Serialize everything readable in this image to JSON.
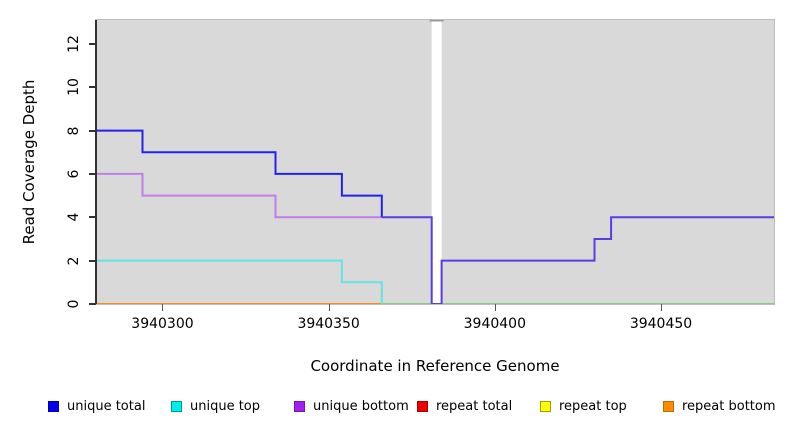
{
  "axes": {
    "x_title": "Coordinate in Reference Genome",
    "y_title": "Read Coverage Depth"
  },
  "chart_data": {
    "type": "line",
    "subtype": "step-coverage",
    "title": "",
    "xlabel": "Coordinate in Reference Genome",
    "ylabel": "Read Coverage Depth",
    "xlim": [
      3940280,
      3940484
    ],
    "ylim": [
      0,
      13.1
    ],
    "xticks": [
      3940300,
      3940350,
      3940400,
      3940450
    ],
    "yticks": [
      0,
      2,
      4,
      6,
      8,
      10,
      12
    ],
    "grid": "off",
    "plot_bg": "#d9d9d9",
    "border_color": "#bdbdbd",
    "gap_region": {
      "x_start": 3940381,
      "x_end": 3940384,
      "color": "#ffffff",
      "cap_color": "#999999"
    },
    "series": [
      {
        "name": "repeat-baseline-left",
        "color": "#ff8c00",
        "width": 2,
        "points": [
          [
            3940280,
            0
          ],
          [
            3940366,
            0
          ]
        ]
      },
      {
        "name": "baseline-right-green",
        "color": "#7cc87c",
        "width": 1.8,
        "points": [
          [
            3940366,
            0
          ],
          [
            3940484,
            0
          ]
        ]
      },
      {
        "name": "unique-top-left",
        "color": "#66e2e2",
        "width": 2,
        "points": [
          [
            3940280,
            2
          ],
          [
            3940354,
            2
          ],
          [
            3940354,
            1
          ],
          [
            3940366,
            1
          ],
          [
            3940366,
            0
          ]
        ]
      },
      {
        "name": "unique-bottom-left",
        "color": "#c07ee8",
        "width": 2,
        "points": [
          [
            3940280,
            6
          ],
          [
            3940294,
            6
          ],
          [
            3940294,
            5
          ],
          [
            3940334,
            5
          ],
          [
            3940334,
            4
          ],
          [
            3940366,
            4
          ]
        ]
      },
      {
        "name": "unique-total-left",
        "color": "#2222ee",
        "width": 2,
        "points": [
          [
            3940280,
            8
          ],
          [
            3940294,
            8
          ],
          [
            3940294,
            7
          ],
          [
            3940334,
            7
          ],
          [
            3940334,
            6
          ],
          [
            3940354,
            6
          ],
          [
            3940354,
            5
          ],
          [
            3940366,
            5
          ],
          [
            3940366,
            4
          ]
        ]
      },
      {
        "name": "unique-total-right-overlap",
        "color": "#5a3ce0",
        "width": 2,
        "points": [
          [
            3940366,
            4
          ],
          [
            3940381,
            4
          ],
          [
            3940381,
            0
          ],
          [
            3940384,
            0
          ],
          [
            3940384,
            2
          ],
          [
            3940430,
            2
          ],
          [
            3940430,
            3
          ],
          [
            3940435,
            3
          ],
          [
            3940435,
            4
          ],
          [
            3940484,
            4
          ]
        ]
      }
    ],
    "legend_position": "bottom"
  },
  "legend": {
    "items": [
      {
        "label": "unique total",
        "fill": "#0000ee",
        "border": "#0000b0"
      },
      {
        "label": "unique top",
        "fill": "#00eeee",
        "border": "#009999"
      },
      {
        "label": "unique bottom",
        "fill": "#a020f0",
        "border": "#7714b8"
      },
      {
        "label": "repeat total",
        "fill": "#ee0000",
        "border": "#aa0000"
      },
      {
        "label": "repeat top",
        "fill": "#ffff00",
        "border": "#a0a000"
      },
      {
        "label": "repeat bottom",
        "fill": "#ff8c00",
        "border": "#c06a00"
      }
    ]
  }
}
